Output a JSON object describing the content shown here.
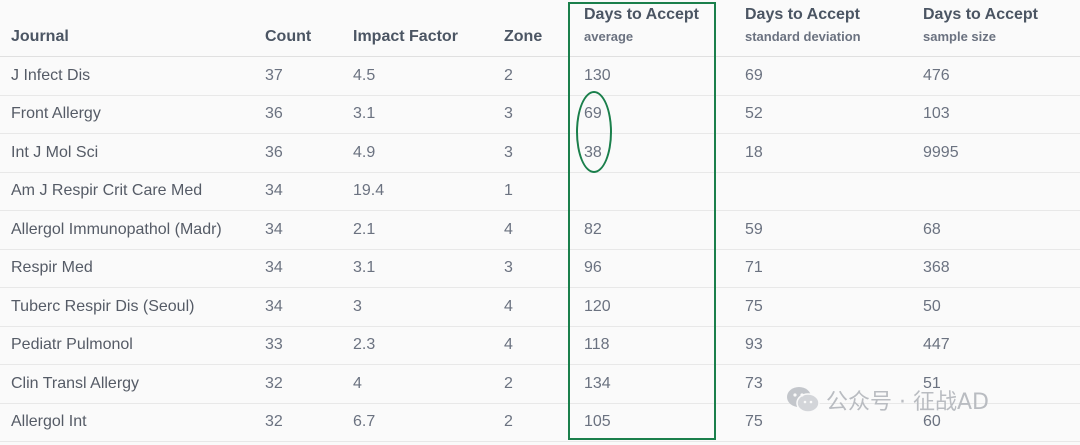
{
  "columns": [
    {
      "key": "journal",
      "title": "Journal",
      "sub": ""
    },
    {
      "key": "count",
      "title": "Count",
      "sub": ""
    },
    {
      "key": "impact_factor",
      "title": "Impact Factor",
      "sub": ""
    },
    {
      "key": "zone",
      "title": "Zone",
      "sub": ""
    },
    {
      "key": "days_avg",
      "title": "Days to Accept",
      "sub": "average"
    },
    {
      "key": "days_sd",
      "title": "Days to Accept",
      "sub": "standard deviation"
    },
    {
      "key": "days_n",
      "title": "Days to Accept",
      "sub": "sample size"
    }
  ],
  "rows": [
    {
      "journal": "J Infect Dis",
      "count": "37",
      "impact_factor": "4.5",
      "zone": "2",
      "days_avg": "130",
      "days_sd": "69",
      "days_n": "476"
    },
    {
      "journal": "Front Allergy",
      "count": "36",
      "impact_factor": "3.1",
      "zone": "3",
      "days_avg": "69",
      "days_sd": "52",
      "days_n": "103"
    },
    {
      "journal": "Int J Mol Sci",
      "count": "36",
      "impact_factor": "4.9",
      "zone": "3",
      "days_avg": "38",
      "days_sd": "18",
      "days_n": "9995"
    },
    {
      "journal": "Am J Respir Crit Care Med",
      "count": "34",
      "impact_factor": "19.4",
      "zone": "1",
      "days_avg": "",
      "days_sd": "",
      "days_n": ""
    },
    {
      "journal": "Allergol Immunopathol (Madr)",
      "count": "34",
      "impact_factor": "2.1",
      "zone": "4",
      "days_avg": "82",
      "days_sd": "59",
      "days_n": "68"
    },
    {
      "journal": "Respir Med",
      "count": "34",
      "impact_factor": "3.1",
      "zone": "3",
      "days_avg": "96",
      "days_sd": "71",
      "days_n": "368"
    },
    {
      "journal": "Tuberc Respir Dis (Seoul)",
      "count": "34",
      "impact_factor": "3",
      "zone": "4",
      "days_avg": "120",
      "days_sd": "75",
      "days_n": "50"
    },
    {
      "journal": "Pediatr Pulmonol",
      "count": "33",
      "impact_factor": "2.3",
      "zone": "4",
      "days_avg": "118",
      "days_sd": "93",
      "days_n": "447"
    },
    {
      "journal": "Clin Transl Allergy",
      "count": "32",
      "impact_factor": "4",
      "zone": "2",
      "days_avg": "134",
      "days_sd": "73",
      "days_n": "51"
    },
    {
      "journal": "Allergol Int",
      "count": "32",
      "impact_factor": "6.7",
      "zone": "2",
      "days_avg": "105",
      "days_sd": "75",
      "days_n": "60"
    }
  ],
  "annotation_color": "#1a7f4b",
  "watermark": {
    "text": "公众号 · 征战AD",
    "icon": "wechat-icon"
  }
}
